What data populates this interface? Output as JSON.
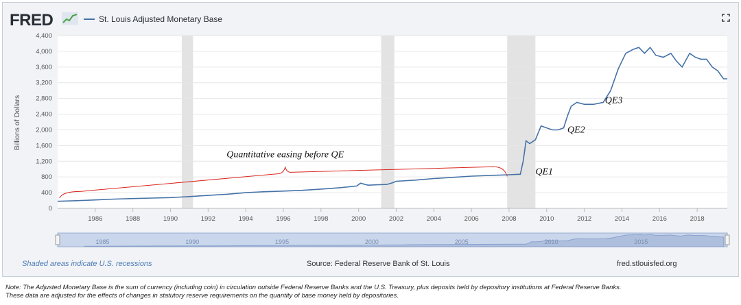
{
  "header": {
    "logo_text": "FRED",
    "legend_label": "St. Louis Adjusted Monetary Base",
    "fullscreen_icon": "fullscreen-icon",
    "logo_icon": "fred-chart-icon"
  },
  "footer": {
    "recession_note": "Shaded areas indicate U.S. recessions",
    "source": "Source: Federal Reserve Bank of St. Louis",
    "site": "fred.stlouisfed.org"
  },
  "note": {
    "line1": "Note: The Adjusted Monetary Base is the sum of currency (including coin) in circulation outside Federal Reserve Banks and the U.S. Treasury, plus deposits held by depository institutions at Federal Reserve Banks.",
    "line2": "These data are adjusted for the effects of changes in statutory reserve requirements on the quantity of base money held by depositories."
  },
  "colors": {
    "series": "#4572a7",
    "recession": "#e3e3e3",
    "annotation_bracket": "#d9251d",
    "navigator_fill": "#aebfdd"
  },
  "chart_data": {
    "type": "line",
    "title": "",
    "xlabel": "",
    "ylabel": "Billions of Dollars",
    "xlim": [
      1984.0,
      2019.6
    ],
    "ylim": [
      0,
      4400
    ],
    "yticks": [
      0,
      400,
      800,
      1200,
      1600,
      2000,
      2400,
      2800,
      3200,
      3600,
      4000,
      4400
    ],
    "ytick_labels": [
      "0",
      "400",
      "800",
      "1,200",
      "1,600",
      "2,000",
      "2,400",
      "2,800",
      "3,200",
      "3,600",
      "4,000",
      "4,400"
    ],
    "xticks": [
      1986,
      1988,
      1990,
      1992,
      1994,
      1996,
      1998,
      2000,
      2002,
      2004,
      2006,
      2008,
      2010,
      2012,
      2014,
      2016,
      2018
    ],
    "grid": true,
    "legend_position": "top-left",
    "recessions": [
      [
        1990.6,
        1991.2
      ],
      [
        2001.2,
        2001.9
      ],
      [
        2007.9,
        2009.4
      ]
    ],
    "series": [
      {
        "name": "St. Louis Adjusted Monetary Base",
        "x": [
          1984.0,
          1985.0,
          1986.0,
          1987.0,
          1988.0,
          1989.0,
          1990.0,
          1991.0,
          1992.0,
          1993.0,
          1994.0,
          1995.0,
          1996.0,
          1997.0,
          1998.0,
          1999.0,
          1999.9,
          2000.1,
          2000.5,
          2001.0,
          2001.5,
          2001.8,
          2002.0,
          2003.0,
          2004.0,
          2005.0,
          2006.0,
          2007.0,
          2008.0,
          2008.6,
          2008.75,
          2008.9,
          2009.1,
          2009.4,
          2009.7,
          2010.0,
          2010.3,
          2010.6,
          2010.9,
          2011.1,
          2011.3,
          2011.6,
          2012.0,
          2012.5,
          2013.0,
          2013.4,
          2013.8,
          2014.2,
          2014.6,
          2014.9,
          2015.2,
          2015.5,
          2015.8,
          2016.2,
          2016.6,
          2016.9,
          2017.2,
          2017.6,
          2017.9,
          2018.2,
          2018.5,
          2018.8,
          2019.1,
          2019.4,
          2019.6
        ],
        "y": [
          180,
          195,
          215,
          235,
          250,
          262,
          275,
          300,
          330,
          360,
          400,
          425,
          440,
          460,
          490,
          525,
          570,
          640,
          590,
          600,
          610,
          650,
          690,
          720,
          760,
          790,
          820,
          840,
          855,
          870,
          1200,
          1720,
          1650,
          1750,
          2100,
          2050,
          2000,
          2000,
          2050,
          2350,
          2600,
          2700,
          2650,
          2650,
          2700,
          3000,
          3550,
          3950,
          4050,
          4100,
          3950,
          4100,
          3900,
          3850,
          3950,
          3750,
          3600,
          3950,
          3850,
          3800,
          3800,
          3600,
          3500,
          3300,
          3300
        ]
      }
    ],
    "annotations": [
      {
        "text": "Quantitative easing before QE",
        "x": 1996.1,
        "y": 1300
      },
      {
        "text": "QE1",
        "x": 2009.4,
        "y": 860
      },
      {
        "text": "QE2",
        "x": 2011.1,
        "y": 1930
      },
      {
        "text": "QE3",
        "x": 2013.1,
        "y": 2680
      }
    ],
    "bracket": {
      "x_start": 1984.1,
      "x_peak": 1996.1,
      "x_end": 2007.9,
      "y_base": 780,
      "y_start": 260,
      "y_peak": 1050,
      "y_end": 920
    },
    "navigator": {
      "labels": [
        "1985",
        "1990",
        "1995",
        "2000",
        "2005",
        "2010",
        "2015"
      ],
      "label_x": [
        1985,
        1990,
        1995,
        2000,
        2005,
        2010,
        2015
      ],
      "xlim": [
        1982.5,
        2019.8
      ]
    }
  }
}
